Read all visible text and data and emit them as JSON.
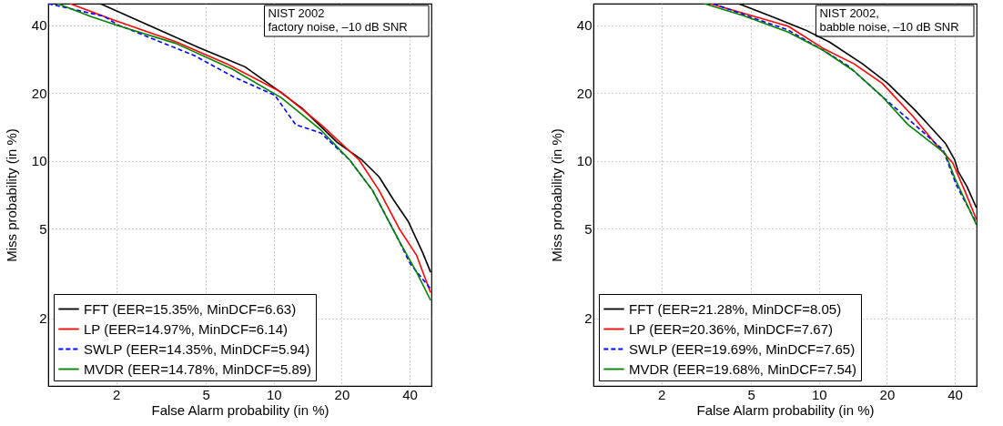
{
  "chart_data": [
    {
      "type": "line",
      "title": "NIST 2002\nfactory noise, –10 dB SNR",
      "xlabel": "False Alarm probability (in %)",
      "ylabel": "Miss probability (in %)",
      "xlim": [
        1,
        50
      ],
      "ylim": [
        1,
        50
      ],
      "xticks": [
        2,
        5,
        10,
        20,
        40
      ],
      "yticks": [
        2,
        5,
        10,
        20,
        40
      ],
      "grid": true,
      "legend": "bottom left",
      "log": "xy",
      "series": [
        {
          "name": "FFT (EER=15.35%, MinDCF=6.63)",
          "color": "#000000",
          "line_style": "solid",
          "x": [
            1.7,
            4.65,
            7.45,
            10.1,
            13.3,
            19.1,
            24.6,
            29.3,
            34.0,
            39.4,
            45.8,
            49.6
          ],
          "values": [
            50,
            31.9,
            26.2,
            21.1,
            17.2,
            12.1,
            10.1,
            8.5,
            6.7,
            5.4,
            3.9,
            3.2
          ]
        },
        {
          "name": "LP (EER=14.97%, MinDCF=6.14)",
          "color": "#ff0000",
          "line_style": "solid",
          "x": [
            1.25,
            1.95,
            3.67,
            6.2,
            10.8,
            16.2,
            23.9,
            29.3,
            36.0,
            43.0,
            49.6
          ],
          "values": [
            50,
            42.3,
            33.9,
            27.0,
            20.2,
            14.5,
            10.1,
            7.4,
            5.0,
            3.8,
            2.6
          ]
        },
        {
          "name": "SWLP (EER=14.35%, MinDCF=5.94)",
          "color": "#0000ff",
          "line_style": "dashed",
          "x": [
            1.0,
            1.77,
            2.03,
            4.44,
            6.7,
            10.1,
            12.5,
            16.2,
            21.7,
            27.4,
            36.0,
            40.2,
            49.6
          ],
          "values": [
            50,
            43.9,
            40.3,
            29.4,
            23.5,
            19.6,
            14.5,
            13.3,
            10.1,
            7.4,
            4.4,
            3.5,
            2.7
          ]
        },
        {
          "name": "MVDR (EER=14.78%, MinDCF=5.89)",
          "color": "#008000",
          "line_style": "solid",
          "x": [
            1.1,
            1.54,
            2.03,
            3.67,
            6.5,
            10.8,
            16.2,
            21.7,
            27.4,
            36.0,
            43.0,
            49.6
          ],
          "values": [
            50,
            43.9,
            40.0,
            33.3,
            25.7,
            19.1,
            13.7,
            10.1,
            7.4,
            4.4,
            3.2,
            2.4
          ]
        }
      ]
    },
    {
      "type": "line",
      "title": "NIST 2002,\nbabble noise, –10 dB SNR",
      "xlabel": "False Alarm probability (in %)",
      "ylabel": "Miss probability (in %)",
      "xlim": [
        1,
        50
      ],
      "ylim": [
        1,
        50
      ],
      "xticks": [
        2,
        5,
        10,
        20,
        40
      ],
      "yticks": [
        2,
        5,
        10,
        20,
        40
      ],
      "grid": true,
      "legend": "bottom left",
      "log": "xy",
      "series": [
        {
          "name": "FFT (EER=21.28%, MinDCF=8.05)",
          "color": "#000000",
          "line_style": "solid",
          "x": [
            4.4,
            6.3,
            8.7,
            11.1,
            15.6,
            20.2,
            26.7,
            36.3,
            40.0,
            41.4,
            45.3,
            49.9
          ],
          "values": [
            50,
            43.5,
            38.2,
            33.8,
            27.0,
            22.1,
            16.8,
            12.0,
            10.1,
            9.0,
            7.7,
            6.2
          ]
        },
        {
          "name": "LP (EER=20.36%, MinDCF=7.67)",
          "color": "#ff0000",
          "line_style": "solid",
          "x": [
            3.3,
            5.0,
            7.3,
            10.4,
            14.3,
            19.1,
            26.1,
            32.7,
            39.2,
            44.5,
            49.9
          ],
          "values": [
            50,
            44.3,
            39.7,
            31.7,
            27.0,
            22.1,
            15.8,
            12.0,
            9.8,
            7.3,
            5.5
          ]
        },
        {
          "name": "SWLP (EER=19.69%, MinDCF=7.65)",
          "color": "#0000ff",
          "line_style": "dashed",
          "x": [
            3.4,
            5.0,
            7.3,
            10.4,
            13.5,
            19.1,
            24.8,
            35.5,
            40.7,
            49.9
          ],
          "values": [
            50,
            43.5,
            38.2,
            31.1,
            26.4,
            19.3,
            15.4,
            11.2,
            7.8,
            5.3
          ]
        },
        {
          "name": "MVDR (EER=19.68%, MinDCF=7.54)",
          "color": "#008000",
          "line_style": "solid",
          "x": [
            3.1,
            4.6,
            7.3,
            10.4,
            14.3,
            19.1,
            24.8,
            36.3,
            40.0,
            49.9
          ],
          "values": [
            50,
            44.3,
            37.4,
            31.1,
            25.1,
            19.3,
            14.5,
            10.8,
            8.4,
            5.2
          ]
        }
      ]
    }
  ]
}
